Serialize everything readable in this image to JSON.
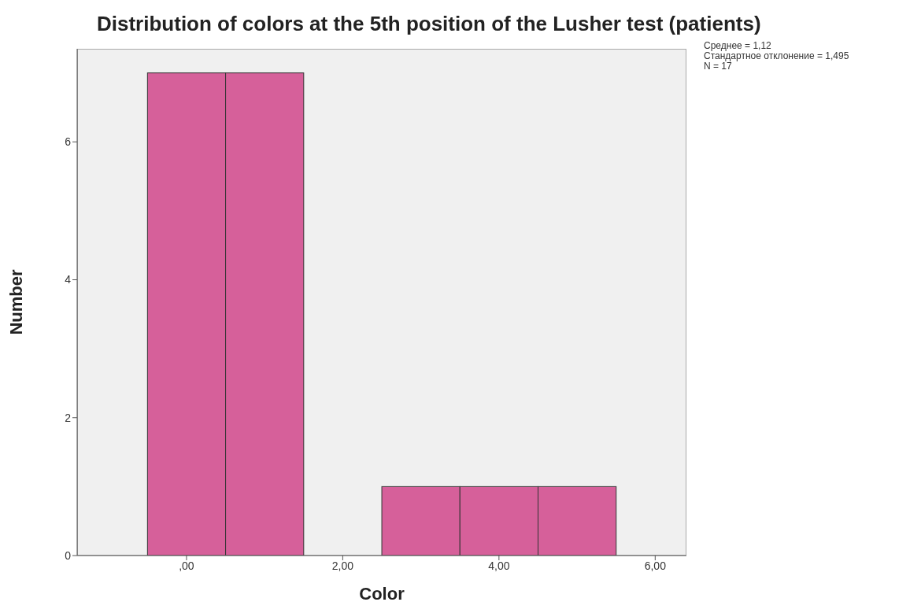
{
  "chart_data": {
    "type": "histogram",
    "title": "Distribution of colors at the 5th position of the Lusher test (patients)",
    "xlabel": "Color",
    "ylabel": "Number",
    "bins": [
      -0.5,
      0.5,
      1.5,
      2.5,
      3.5,
      4.5,
      5.5
    ],
    "values": [
      7,
      7,
      0,
      1,
      1,
      1
    ],
    "color": "#d6609a",
    "xlim": [
      -1.4,
      6.4
    ],
    "xticks": [
      {
        "value": 0,
        "label": ",00"
      },
      {
        "value": 2,
        "label": "2,00"
      },
      {
        "value": 4,
        "label": "4,00"
      },
      {
        "value": 6,
        "label": "6,00"
      }
    ],
    "ylim": [
      0,
      7.35
    ],
    "yticks": [
      0,
      2,
      4,
      6
    ],
    "annotations": [
      "Среднее = 1,12",
      "Стандартное отклонение = 1,495",
      "N = 17"
    ],
    "grid": false
  }
}
